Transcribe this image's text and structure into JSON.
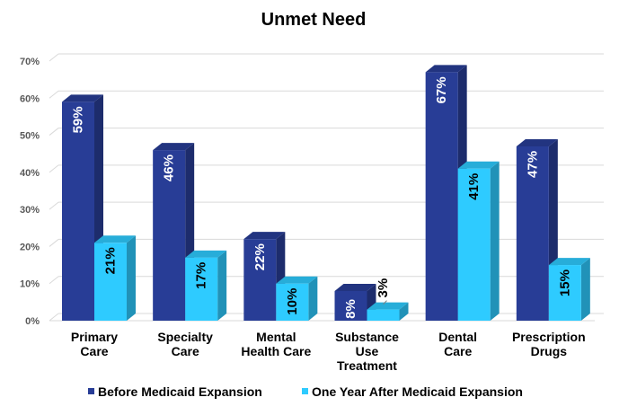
{
  "chart_data": {
    "type": "bar",
    "title": "Unmet Need",
    "xlabel": "",
    "ylabel": "",
    "ylim": [
      0,
      70
    ],
    "yticks": [
      0,
      10,
      20,
      30,
      40,
      50,
      60,
      70
    ],
    "ytick_suffix": "%",
    "grid": true,
    "three_d": true,
    "legend_position": "bottom",
    "categories": [
      [
        "Primary",
        "Care"
      ],
      [
        "Specialty",
        "Care"
      ],
      [
        "Mental",
        "Health Care"
      ],
      [
        "Substance",
        "Use",
        "Treatment"
      ],
      [
        "Dental",
        "Care"
      ],
      [
        "Prescription",
        "Drugs"
      ]
    ],
    "series": [
      {
        "name": "Before Medicaid Expansion",
        "color": "#283D96",
        "label_color": "#ffffff",
        "values": [
          59,
          46,
          22,
          8,
          67,
          47
        ],
        "labels": [
          "59%",
          "46%",
          "22%",
          "8%",
          "67%",
          "47%"
        ]
      },
      {
        "name": "One Year After Medicaid Expansion",
        "color": "#2ECBFF",
        "label_color": "#000000",
        "values": [
          21,
          17,
          10,
          3,
          41,
          15
        ],
        "labels": [
          "21%",
          "17%",
          "10%",
          "3%",
          "41%",
          "15%"
        ]
      }
    ]
  }
}
